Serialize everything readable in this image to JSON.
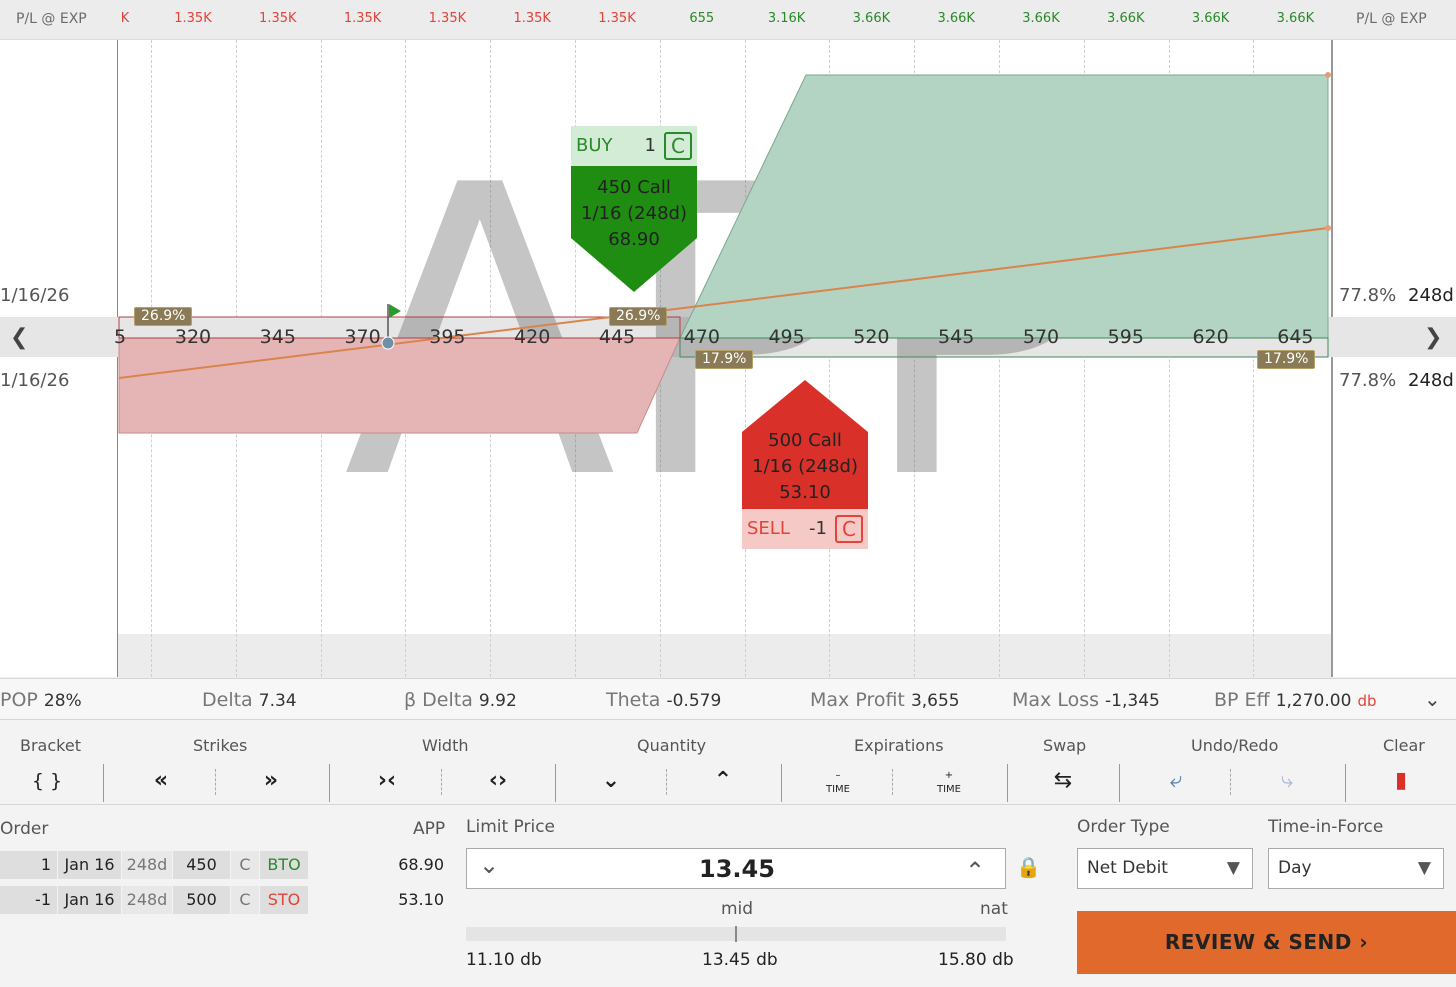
{
  "header": {
    "pl_label_left": "P/L @ EXP",
    "pl_label_right": "P/L @ EXP",
    "pl_values": [
      {
        "text": "K",
        "color": "#e0443a"
      },
      {
        "text": "1.35K",
        "color": "#e0443a"
      },
      {
        "text": "1.35K",
        "color": "#e0443a"
      },
      {
        "text": "1.35K",
        "color": "#e0443a"
      },
      {
        "text": "1.35K",
        "color": "#e0443a"
      },
      {
        "text": "1.35K",
        "color": "#e0443a"
      },
      {
        "text": "1.35K",
        "color": "#e0443a"
      },
      {
        "text": "655",
        "color": "#2a8a2a"
      },
      {
        "text": "3.16K",
        "color": "#2a8a2a"
      },
      {
        "text": "3.66K",
        "color": "#2a8a2a"
      },
      {
        "text": "3.66K",
        "color": "#2a8a2a"
      },
      {
        "text": "3.66K",
        "color": "#2a8a2a"
      },
      {
        "text": "3.66K",
        "color": "#2a8a2a"
      },
      {
        "text": "3.66K",
        "color": "#2a8a2a"
      },
      {
        "text": "3.66K",
        "color": "#2a8a2a"
      }
    ]
  },
  "chart": {
    "watermark": "APP",
    "strikes": [
      "5",
      "320",
      "345",
      "370",
      "395",
      "420",
      "445",
      "470",
      "495",
      "520",
      "545",
      "570",
      "595",
      "620",
      "645"
    ],
    "upper_date": "1/16/26",
    "lower_date": "1/16/26",
    "upper_pct": "77.8%",
    "lower_pct": "77.8%",
    "upper_days": "248d",
    "lower_days": "248d",
    "badges": {
      "left_top": "26.9%",
      "mid_top": "26.9%",
      "left_bottom": "17.9%",
      "right_bottom": "17.9%"
    },
    "profit_color": "#b3d3c3",
    "loss_color": "#e5b5b5"
  },
  "buy_card": {
    "action": "BUY",
    "qty": "1",
    "type": "C",
    "line1": "450 Call",
    "line2": "1/16 (248d)",
    "line3": "68.90"
  },
  "sell_card": {
    "action": "SELL",
    "qty": "-1",
    "type": "C",
    "line1": "500 Call",
    "line2": "1/16 (248d)",
    "line3": "53.10"
  },
  "stats": {
    "pop_label": "POP",
    "pop_value": "28%",
    "delta_label": "Delta",
    "delta_value": "7.34",
    "bdelta_label": "β Delta",
    "bdelta_value": "9.92",
    "theta_label": "Theta",
    "theta_value": "-0.579",
    "maxprofit_label": "Max Profit",
    "maxprofit_value": "3,655",
    "maxloss_label": "Max Loss",
    "maxloss_value": "-1,345",
    "bpeff_label": "BP Eff",
    "bpeff_value": "1,270.00",
    "bpeff_unit": "db"
  },
  "toolbar": {
    "bracket": "Bracket",
    "bracket_icon": "{ }",
    "strikes": "Strikes",
    "width": "Width",
    "quantity": "Quantity",
    "expirations": "Expirations",
    "time_label": "TIME",
    "swap": "Swap",
    "undo_redo": "Undo/Redo",
    "clear": "Clear"
  },
  "order": {
    "order_label": "Order",
    "app_label": "APP",
    "legs": [
      {
        "qty": "1",
        "exp": "Jan 16",
        "dte": "248d",
        "strike": "450",
        "type": "C",
        "action": "BTO",
        "action_color": "#2a8a2a",
        "app": "68.90"
      },
      {
        "qty": "-1",
        "exp": "Jan 16",
        "dte": "248d",
        "strike": "500",
        "type": "C",
        "action": "STO",
        "action_color": "#e0443a",
        "app": "53.10"
      }
    ],
    "limit_price_label": "Limit Price",
    "limit_price": "13.45",
    "mid_label": "mid",
    "nat_label": "nat",
    "range_low": "11.10 db",
    "range_mid": "13.45 db",
    "range_high": "15.80 db",
    "order_type_label": "Order Type",
    "order_type": "Net Debit",
    "tif_label": "Time-in-Force",
    "tif": "Day",
    "review_button": "REVIEW & SEND"
  }
}
